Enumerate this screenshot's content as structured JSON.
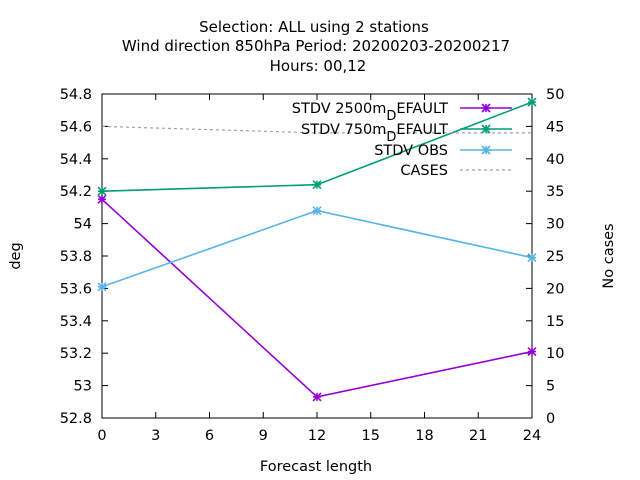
{
  "chart_data": {
    "type": "line",
    "title_lines": [
      "Selection: ALL using     2 stations",
      "Wind direction 850hPa   Period: 20200203-20200217",
      "Hours:  00,12"
    ],
    "xlabel": "Forecast length",
    "ylabel": "deg",
    "y2label": "No cases",
    "xlim": [
      0,
      24
    ],
    "ylim": [
      52.8,
      54.8
    ],
    "y2lim": [
      0,
      50
    ],
    "xticks": [
      "0",
      "3",
      "6",
      "9",
      "12",
      "15",
      "18",
      "21",
      "24"
    ],
    "yticks": [
      "52.8",
      "53",
      "53.2",
      "53.4",
      "53.6",
      "53.8",
      "54",
      "54.2",
      "54.4",
      "54.6",
      "54.8"
    ],
    "y2ticks": [
      "0",
      "5",
      "10",
      "15",
      "20",
      "25",
      "30",
      "35",
      "40",
      "45",
      "50"
    ],
    "grid": false,
    "legend_position": "top-right",
    "series": [
      {
        "name": "STDV 2500m_DEFAULT",
        "legend_label": "STDV 2500m",
        "legend_suffix": "EFAULT",
        "legend_sub": "D",
        "axis": "y",
        "color": "#9400d3",
        "marker": "asterisk",
        "x": [
          0,
          12,
          24
        ],
        "y": [
          54.15,
          52.93,
          53.21
        ]
      },
      {
        "name": "STDV 750m_DEFAULT",
        "legend_label": "STDV 750m",
        "legend_suffix": "EFAULT",
        "legend_sub": "D",
        "axis": "y",
        "color": "#009e73",
        "marker": "asterisk",
        "x": [
          0,
          12,
          24
        ],
        "y": [
          54.2,
          54.24,
          54.75
        ]
      },
      {
        "name": "STDV OBS",
        "legend_label": "STDV OBS",
        "legend_suffix": "",
        "legend_sub": "",
        "axis": "y",
        "color": "#56b4e9",
        "marker": "asterisk",
        "x": [
          0,
          12,
          24
        ],
        "y": [
          53.61,
          54.08,
          53.79
        ]
      },
      {
        "name": "CASES",
        "legend_label": "CASES",
        "legend_suffix": "",
        "legend_sub": "",
        "axis": "y2",
        "color": "#a0a0a0",
        "marker": "none",
        "dashed": true,
        "x": [
          0,
          12,
          24
        ],
        "y": [
          45,
          44,
          44
        ]
      }
    ]
  }
}
